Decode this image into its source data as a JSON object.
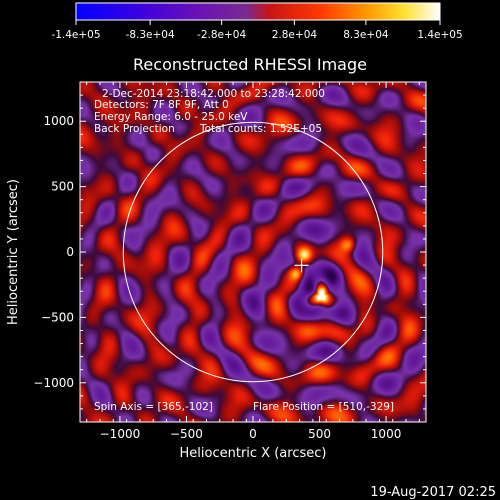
{
  "chart_data": {
    "type": "heatmap",
    "title": "Reconstructed RHESSI Image",
    "xlabel": "Heliocentric X (arcsec)",
    "ylabel": "Heliocentric Y (arcsec)",
    "xlim": [
      -1300,
      1300
    ],
    "ylim": [
      -1300,
      1300
    ],
    "xticks": [
      -1000,
      -500,
      0,
      500,
      1000
    ],
    "yticks": [
      -1000,
      -500,
      0,
      500,
      1000
    ],
    "colorbar": {
      "range": [
        -140000,
        140000
      ],
      "tick_values": [
        -140000,
        -83000,
        -28000,
        28000,
        83000,
        140000
      ],
      "tick_labels": [
        "-1.4e+05",
        "-8.3e+04",
        "-2.8e+04",
        "2.8e+04",
        "8.3e+04",
        "1.4e+05"
      ],
      "colors": [
        "#0000ff",
        "#5500c8",
        "#8a3fb0",
        "#d21010",
        "#ff7a00",
        "#ffff64",
        "#ffffff"
      ]
    },
    "solar_disk": {
      "center": [
        0,
        0
      ],
      "radius_arcsec": 975
    },
    "cross_marker": [
      365,
      -102
    ],
    "bright_sources": [
      {
        "x": 510,
        "y": -329,
        "level": "max"
      },
      {
        "x": 320,
        "y": -160,
        "level": "high"
      },
      {
        "x": 380,
        "y": -20,
        "level": "high"
      },
      {
        "x": 710,
        "y": 60,
        "level": "medium"
      }
    ],
    "annotations": {
      "time_range": "2-Dec-2014 23:18:42.000 to 23:28:42.000",
      "detectors": "Detectors: 7F 8F 9F, Att 0",
      "energy_range": "Energy Range: 6.0 - 25.0 keV",
      "method": "Back Projection",
      "total_counts": "Total counts: 1.52E+05",
      "spin_axis": "Spin Axis = [365,-102]",
      "flare_position": "Flare Position = [510,-329]"
    }
  },
  "footer": {
    "timestamp": "19-Aug-2017 02:25"
  }
}
